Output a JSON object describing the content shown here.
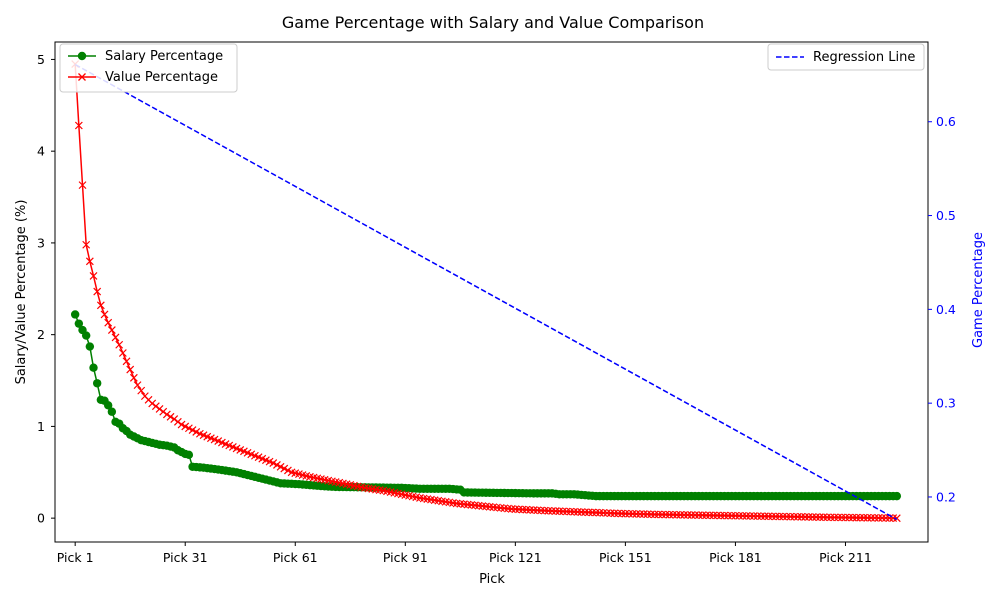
{
  "chart_data": {
    "type": "line",
    "title": "Game Percentage with Salary and Value Comparison",
    "xlabel": "Pick",
    "ylabel_left": "Salary/Value Percentage (%)",
    "ylabel_right": "Game Percentage",
    "x_tick_labels": [
      "Pick 1",
      "Pick 31",
      "Pick 61",
      "Pick 91",
      "Pick 121",
      "Pick 151",
      "Pick 181",
      "Pick 211"
    ],
    "x_tick_picks": [
      1,
      31,
      61,
      91,
      121,
      151,
      181,
      211
    ],
    "x_range": [
      -4.5,
      233.5
    ],
    "y_left_ticks": [
      "0",
      "1",
      "2",
      "3",
      "4",
      "5"
    ],
    "y_left_range": [
      -0.26,
      5.19
    ],
    "y_right_ticks": [
      "0.2",
      "0.3",
      "0.4",
      "0.5",
      "0.6"
    ],
    "y_right_range": [
      0.152,
      0.685
    ],
    "grid": false,
    "colors": {
      "salary": "#008000",
      "value": "#ff0000",
      "regression": "#0000ff"
    },
    "series": [
      {
        "name": "Salary Percentage",
        "axis": "left",
        "marker": "circle",
        "keypoints": [
          [
            1,
            2.22
          ],
          [
            2,
            2.12
          ],
          [
            3,
            2.05
          ],
          [
            4,
            1.99
          ],
          [
            5,
            1.87
          ],
          [
            6,
            1.64
          ],
          [
            7,
            1.47
          ],
          [
            8,
            1.29
          ],
          [
            9,
            1.28
          ],
          [
            10,
            1.23
          ],
          [
            11,
            1.16
          ],
          [
            12,
            1.05
          ],
          [
            13,
            1.03
          ],
          [
            14,
            0.98
          ],
          [
            15,
            0.95
          ],
          [
            16,
            0.91
          ],
          [
            17,
            0.89
          ],
          [
            18,
            0.87
          ],
          [
            19,
            0.85
          ],
          [
            20,
            0.84
          ],
          [
            22,
            0.82
          ],
          [
            24,
            0.8
          ],
          [
            26,
            0.79
          ],
          [
            28,
            0.77
          ],
          [
            29,
            0.74
          ],
          [
            30,
            0.72
          ],
          [
            31,
            0.7
          ],
          [
            32,
            0.69
          ],
          [
            33,
            0.56
          ],
          [
            36,
            0.55
          ],
          [
            40,
            0.53
          ],
          [
            45,
            0.5
          ],
          [
            50,
            0.45
          ],
          [
            55,
            0.4
          ],
          [
            57,
            0.38
          ],
          [
            62,
            0.37
          ],
          [
            65,
            0.36
          ],
          [
            68,
            0.35
          ],
          [
            72,
            0.34
          ],
          [
            90,
            0.33
          ],
          [
            95,
            0.32
          ],
          [
            100,
            0.32
          ],
          [
            103,
            0.32
          ],
          [
            106,
            0.31
          ],
          [
            107,
            0.28
          ],
          [
            126,
            0.27
          ],
          [
            131,
            0.27
          ],
          [
            133,
            0.26
          ],
          [
            137,
            0.26
          ],
          [
            140,
            0.25
          ],
          [
            143,
            0.24
          ],
          [
            225,
            0.24
          ]
        ]
      },
      {
        "name": "Value Percentage",
        "axis": "left",
        "marker": "x",
        "keypoints": [
          [
            1,
            4.95
          ],
          [
            2,
            4.28
          ],
          [
            3,
            3.63
          ],
          [
            4,
            2.98
          ],
          [
            5,
            2.8
          ],
          [
            6,
            2.64
          ],
          [
            7,
            2.47
          ],
          [
            8,
            2.32
          ],
          [
            9,
            2.22
          ],
          [
            10,
            2.13
          ],
          [
            11,
            2.05
          ],
          [
            12,
            1.97
          ],
          [
            13,
            1.89
          ],
          [
            14,
            1.8
          ],
          [
            15,
            1.71
          ],
          [
            16,
            1.62
          ],
          [
            17,
            1.53
          ],
          [
            18,
            1.45
          ],
          [
            19,
            1.39
          ],
          [
            20,
            1.33
          ],
          [
            22,
            1.25
          ],
          [
            24,
            1.19
          ],
          [
            26,
            1.13
          ],
          [
            28,
            1.08
          ],
          [
            30,
            1.02
          ],
          [
            32,
            0.98
          ],
          [
            35,
            0.92
          ],
          [
            40,
            0.84
          ],
          [
            45,
            0.76
          ],
          [
            50,
            0.68
          ],
          [
            55,
            0.6
          ],
          [
            60,
            0.5
          ],
          [
            65,
            0.45
          ],
          [
            70,
            0.41
          ],
          [
            75,
            0.37
          ],
          [
            80,
            0.33
          ],
          [
            85,
            0.3
          ],
          [
            90,
            0.26
          ],
          [
            95,
            0.22
          ],
          [
            100,
            0.19
          ],
          [
            105,
            0.16
          ],
          [
            110,
            0.14
          ],
          [
            115,
            0.12
          ],
          [
            120,
            0.1
          ],
          [
            130,
            0.08
          ],
          [
            140,
            0.065
          ],
          [
            150,
            0.05
          ],
          [
            160,
            0.04
          ],
          [
            175,
            0.03
          ],
          [
            190,
            0.02
          ],
          [
            205,
            0.01
          ],
          [
            225,
            0.0
          ]
        ]
      },
      {
        "name": "Regression Line",
        "axis": "right",
        "style": "dashed",
        "keypoints": [
          [
            1,
            0.661
          ],
          [
            225,
            0.176
          ]
        ]
      }
    ],
    "num_picks": 225,
    "legend_left": {
      "placement": "upper-left",
      "entries": [
        "Salary Percentage",
        "Value Percentage"
      ]
    },
    "legend_right": {
      "placement": "upper-right",
      "entries": [
        "Regression Line"
      ]
    }
  }
}
